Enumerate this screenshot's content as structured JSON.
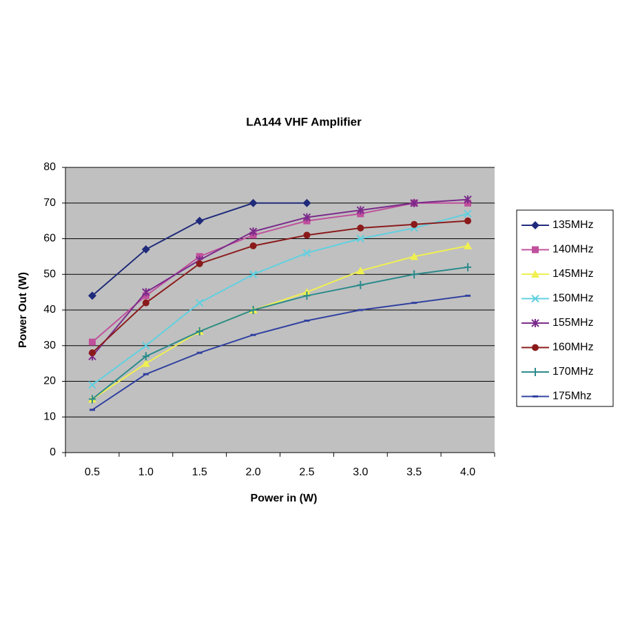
{
  "chart_data": {
    "type": "line",
    "title": "LA144 VHF Amplifier",
    "x_label": "Power in (W)",
    "y_label": "Power Out (W)",
    "categories": [
      "0.5",
      "1.0",
      "1.5",
      "2.0",
      "2.5",
      "3.0",
      "3.5",
      "4.0"
    ],
    "ylim": [
      0,
      80
    ],
    "yticks": [
      0,
      10,
      20,
      30,
      40,
      50,
      60,
      70,
      80
    ],
    "grid": true,
    "legend": "right",
    "series": [
      {
        "name": "135MHz",
        "color": "#1f2a7a",
        "marker": "diamond",
        "values": [
          44,
          57,
          65,
          70,
          70,
          null,
          null,
          null
        ]
      },
      {
        "name": "140MHz",
        "color": "#c0509c",
        "marker": "square",
        "values": [
          31,
          44,
          55,
          61,
          65,
          67,
          70,
          70
        ]
      },
      {
        "name": "145MHz",
        "color": "#f0f050",
        "marker": "triangle",
        "values": [
          15,
          25,
          34,
          40,
          45,
          51,
          55,
          58
        ]
      },
      {
        "name": "150MHz",
        "color": "#60d0e0",
        "marker": "x",
        "values": [
          19,
          30,
          42,
          50,
          56,
          60,
          63,
          67
        ]
      },
      {
        "name": "155MHz",
        "color": "#7a2a8a",
        "marker": "star",
        "values": [
          27,
          45,
          54,
          62,
          66,
          68,
          70,
          71
        ]
      },
      {
        "name": "160MHz",
        "color": "#8b1a1a",
        "marker": "circle",
        "values": [
          28,
          42,
          53,
          58,
          61,
          63,
          64,
          65
        ]
      },
      {
        "name": "170MHz",
        "color": "#2a8a8a",
        "marker": "plus",
        "values": [
          15,
          27,
          34,
          40,
          44,
          47,
          50,
          52
        ]
      },
      {
        "name": "175Mhz",
        "color": "#3040a0",
        "marker": "dash",
        "values": [
          12,
          22,
          28,
          33,
          37,
          40,
          42,
          44
        ]
      }
    ]
  }
}
